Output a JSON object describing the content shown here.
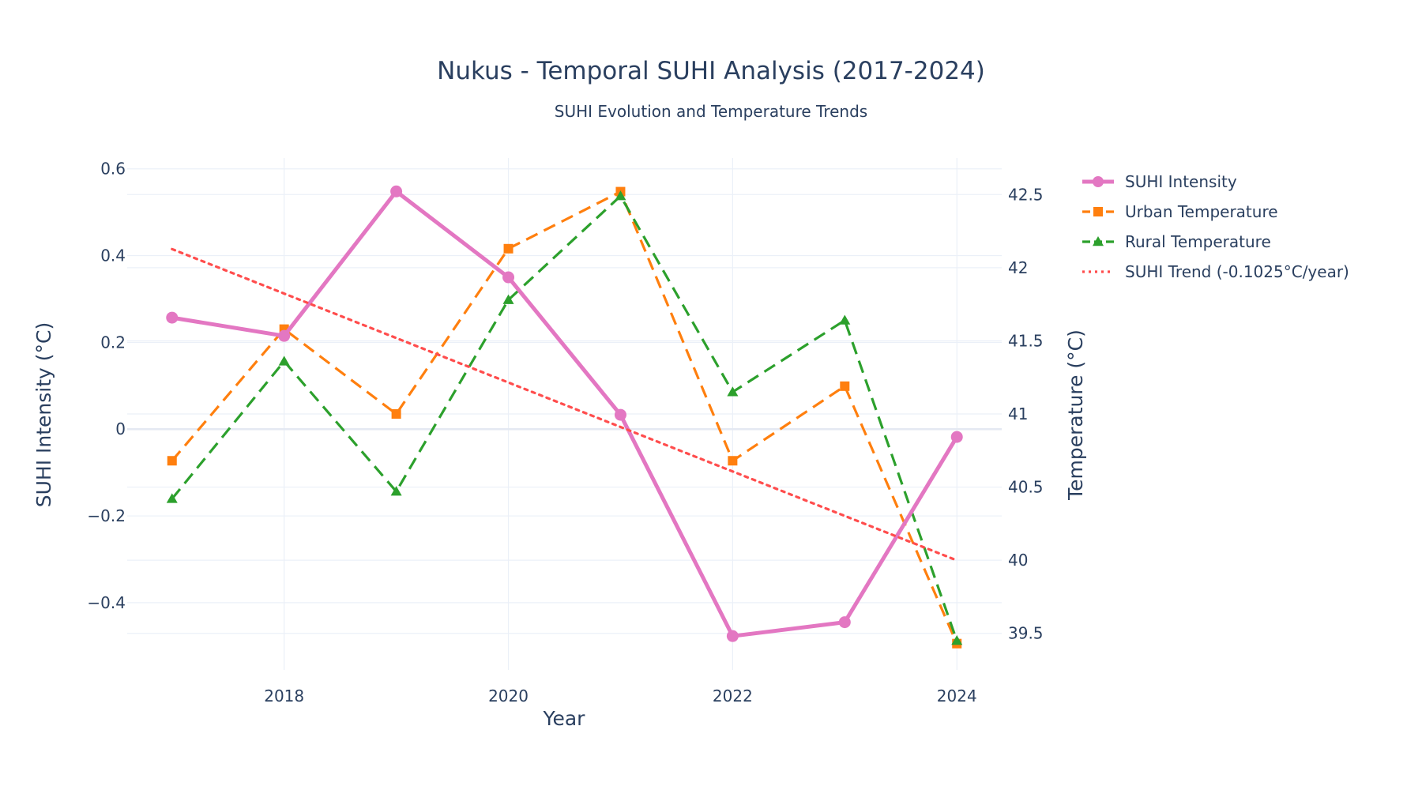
{
  "chart_data": {
    "type": "line",
    "title": "Nukus - Temporal SUHI Analysis (2017-2024)",
    "subtitle": "SUHI Evolution and Temperature Trends",
    "xlabel": "Year",
    "ylabel": "SUHI Intensity (°C)",
    "y2label": "Temperature (°C)",
    "x": [
      2017,
      2018,
      2019,
      2020,
      2021,
      2022,
      2023,
      2024
    ],
    "xlim": [
      2016.6,
      2024.4
    ],
    "ylim": [
      -0.555,
      0.625
    ],
    "y2lim": [
      39.25,
      42.75
    ],
    "x_ticks": [
      2018,
      2020,
      2022,
      2024
    ],
    "x_tick_labels": [
      "2018",
      "2020",
      "2022",
      "2024"
    ],
    "y_ticks": [
      -0.4,
      -0.2,
      0,
      0.2,
      0.4,
      0.6
    ],
    "y_tick_labels": [
      "−0.4",
      "−0.2",
      "0",
      "0.2",
      "0.4",
      "0.6"
    ],
    "y2_ticks": [
      39.5,
      40,
      40.5,
      41,
      41.5,
      42,
      42.5
    ],
    "y2_tick_labels": [
      "39.5",
      "40",
      "40.5",
      "41",
      "41.5",
      "42",
      "42.5"
    ],
    "grid": true,
    "legend_position": "right",
    "series": [
      {
        "name": "SUHI Intensity",
        "axis": "y",
        "color": "#e377c2",
        "dash": "solid",
        "marker": "circle",
        "values": [
          0.257,
          0.215,
          0.548,
          0.35,
          0.033,
          -0.477,
          -0.445,
          -0.018
        ]
      },
      {
        "name": "Urban Temperature",
        "axis": "y2",
        "color": "#ff7f0e",
        "dash": "dash",
        "marker": "square",
        "values": [
          40.68,
          41.58,
          41.0,
          42.13,
          42.52,
          40.68,
          41.19,
          39.43
        ]
      },
      {
        "name": "Rural Temperature",
        "axis": "y2",
        "color": "#2ca02c",
        "dash": "dash",
        "marker": "triangle",
        "values": [
          40.42,
          41.36,
          40.47,
          41.78,
          42.49,
          41.15,
          41.64,
          39.45
        ]
      },
      {
        "name": "SUHI Trend (-0.1025°C/year)",
        "axis": "y",
        "color": "#ff4d4d",
        "dash": "dot",
        "marker": "none",
        "values": [
          0.415,
          0.3125,
          0.21,
          0.1075,
          0.005,
          -0.0975,
          -0.2,
          -0.3025
        ]
      }
    ]
  }
}
